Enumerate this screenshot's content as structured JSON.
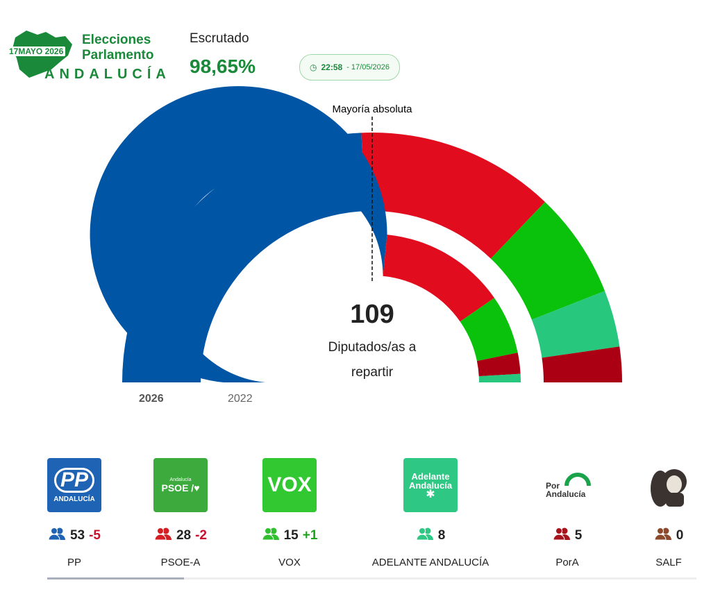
{
  "header": {
    "logo": {
      "date": "17MAYO 2026",
      "line1": "Elecciones",
      "line2": "Parlamento",
      "region": "ANDALUCÍA"
    },
    "scrutiny_label": "Escrutado",
    "scrutiny_value": "98,65%",
    "time": "22:58",
    "date": "- 17/05/2026"
  },
  "chart_data": {
    "type": "hemicycle",
    "majority_label": "Mayoría absoluta",
    "total": 109,
    "total_label": "Diputados/as a repartir",
    "rings": [
      {
        "name": "2026",
        "colors": [
          "#0055a4",
          "#e10d1f",
          "#0ac20c",
          "#27c77d",
          "#ab0014"
        ],
        "values": [
          53,
          28,
          15,
          8,
          5
        ]
      },
      {
        "name": "2022",
        "colors": [
          "#0055a4",
          "#e10d1f",
          "#0ac20c",
          "#ab0014",
          "#27c77d"
        ],
        "values": [
          58,
          30,
          14,
          5,
          2
        ]
      }
    ]
  },
  "parties": [
    {
      "name": "PP",
      "logo": [
        "PP",
        "ANDALUCÍA"
      ],
      "seats": 53,
      "change": "-5"
    },
    {
      "name": "PSOE-A",
      "logo": [
        "Andalucía",
        "PSOE /"
      ],
      "seats": 28,
      "change": "-2"
    },
    {
      "name": "VOX",
      "logo": [
        "VOX"
      ],
      "seats": 15,
      "change": "+1"
    },
    {
      "name": "ADELANTE ANDALUCÍA",
      "logo": [
        "Adelante",
        "Andalucía"
      ],
      "seats": 8
    },
    {
      "name": "PorA",
      "logo": [
        "Por",
        "Andalucía"
      ],
      "seats": 5
    },
    {
      "name": "SALF",
      "seats": 0
    }
  ]
}
